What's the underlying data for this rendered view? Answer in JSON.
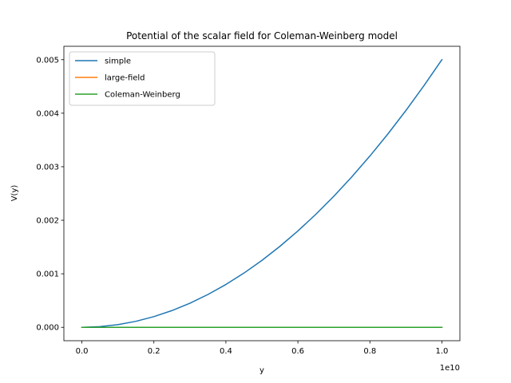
{
  "chart_data": {
    "type": "line",
    "title": "Potential of the scalar field for Coleman-Weinberg model",
    "xlabel": "y",
    "ylabel": "V(y)",
    "x_offset_text": "1e10",
    "xlim": [
      -0.05,
      1.05
    ],
    "ylim": [
      -0.00025,
      0.00525
    ],
    "x_ticks": [
      "0.0",
      "0.2",
      "0.4",
      "0.6",
      "0.8",
      "1.0"
    ],
    "x_tick_values": [
      0.0,
      0.2,
      0.4,
      0.6,
      0.8,
      1.0
    ],
    "y_ticks": [
      "0.000",
      "0.001",
      "0.002",
      "0.003",
      "0.004",
      "0.005"
    ],
    "y_tick_values": [
      0.0,
      0.001,
      0.002,
      0.003,
      0.004,
      0.005
    ],
    "grid": false,
    "legend_position": "top-left",
    "series": [
      {
        "name": "simple",
        "color": "#1f77b4",
        "x": [
          0.0,
          0.05,
          0.1,
          0.15,
          0.2,
          0.25,
          0.3,
          0.35,
          0.4,
          0.45,
          0.5,
          0.55,
          0.6,
          0.65,
          0.7,
          0.75,
          0.8,
          0.85,
          0.9,
          0.95,
          1.0
        ],
        "y": [
          0.0,
          1.25e-05,
          5e-05,
          0.0001125,
          0.0002,
          0.0003125,
          0.00045,
          0.0006125,
          0.0008,
          0.0010125,
          0.00125,
          0.0015125,
          0.0018,
          0.0021125,
          0.00245,
          0.0028125,
          0.0032,
          0.0036125,
          0.00405,
          0.0045125,
          0.005
        ]
      },
      {
        "name": "large-field",
        "color": "#ff7f0e",
        "x": [
          0.0,
          1.0
        ],
        "y": [
          0.0,
          0.0
        ]
      },
      {
        "name": "Coleman-Weinberg",
        "color": "#2ca02c",
        "x": [
          0.0,
          1.0
        ],
        "y": [
          0.0,
          0.0
        ]
      }
    ]
  }
}
